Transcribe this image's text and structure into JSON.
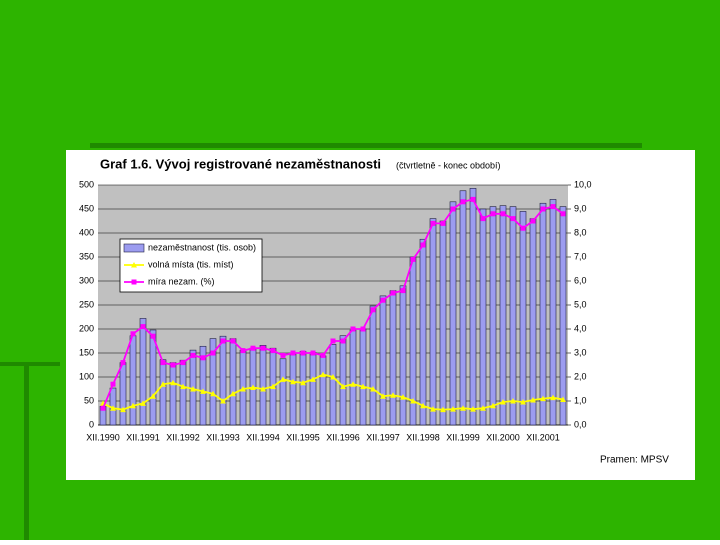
{
  "chart_data": {
    "type": "bar_line",
    "title": "Graf 1.6. Vývoj registrované nezaměstnanosti",
    "subtitle": "(čtvrtletně - konec období)",
    "source": "Pramen: MPSV",
    "categories": [
      "XII.1990",
      null,
      null,
      null,
      "XII.1991",
      null,
      null,
      null,
      "XII.1992",
      null,
      null,
      null,
      "XII.1993",
      null,
      null,
      null,
      "XII.1994",
      null,
      null,
      null,
      "XII.1995",
      null,
      null,
      null,
      "XII.1996",
      null,
      null,
      null,
      "XII.1997",
      null,
      null,
      null,
      "XII.1998",
      null,
      null,
      null,
      "XII.1999",
      null,
      null,
      null,
      "XII.2000",
      null,
      null,
      null,
      "XII.2001",
      null,
      null
    ],
    "series": [
      {
        "name": "nezaměstnanost (tis. osob)",
        "type": "bar",
        "color": "#9c9cf0",
        "values": [
          39,
          77,
          130,
          186,
          222,
          198,
          136,
          130,
          135,
          156,
          164,
          180,
          185,
          180,
          156,
          160,
          166,
          160,
          138,
          148,
          153,
          151,
          144,
          168,
          186,
          198,
          200,
          248,
          269,
          280,
          290,
          350,
          387,
          430,
          425,
          465,
          488,
          493,
          450,
          455,
          457,
          455,
          445,
          430,
          462,
          470,
          455
        ]
      },
      {
        "name": "volná místa (tis. míst)",
        "type": "line",
        "color": "#ffff00",
        "marker": "triangle",
        "values": [
          45,
          35,
          32,
          40,
          45,
          60,
          85,
          88,
          80,
          75,
          70,
          65,
          50,
          65,
          75,
          78,
          75,
          80,
          95,
          90,
          88,
          95,
          105,
          100,
          80,
          85,
          80,
          75,
          60,
          62,
          58,
          50,
          40,
          33,
          32,
          33,
          35,
          33,
          35,
          40,
          48,
          50,
          48,
          52,
          55,
          57,
          53
        ]
      },
      {
        "name": "míra nezam. (%)",
        "type": "line",
        "axis": "y2",
        "color": "#ff00ff",
        "marker": "square",
        "values": [
          0.7,
          1.7,
          2.6,
          3.8,
          4.1,
          3.7,
          2.6,
          2.5,
          2.6,
          2.9,
          2.8,
          3.0,
          3.5,
          3.5,
          3.1,
          3.2,
          3.2,
          3.1,
          2.9,
          3.0,
          3.0,
          3.0,
          2.9,
          3.5,
          3.5,
          4.0,
          4.0,
          4.8,
          5.2,
          5.5,
          5.6,
          6.9,
          7.5,
          8.4,
          8.4,
          9.0,
          9.3,
          9.4,
          8.6,
          8.8,
          8.8,
          8.6,
          8.2,
          8.5,
          9.0,
          9.1,
          8.8
        ]
      }
    ],
    "ylim": [
      0,
      500
    ],
    "yticks": [
      0,
      50,
      100,
      150,
      200,
      250,
      300,
      350,
      400,
      450,
      500
    ],
    "y2lim": [
      0,
      10
    ],
    "y2ticks": [
      {
        "value": 0,
        "label": "0,0"
      },
      {
        "value": 1,
        "label": "1,0"
      },
      {
        "value": 2,
        "label": "2,0"
      },
      {
        "value": 3,
        "label": "3,0"
      },
      {
        "value": 4,
        "label": "4,0"
      },
      {
        "value": 5,
        "label": "5,0"
      },
      {
        "value": 6,
        "label": "6,0"
      },
      {
        "value": 7,
        "label": "7,0"
      },
      {
        "value": 8,
        "label": "8,0"
      },
      {
        "value": 9,
        "label": "9,0"
      },
      {
        "value": 10,
        "label": "10,0"
      }
    ],
    "grid": true,
    "legend": "upper left"
  }
}
